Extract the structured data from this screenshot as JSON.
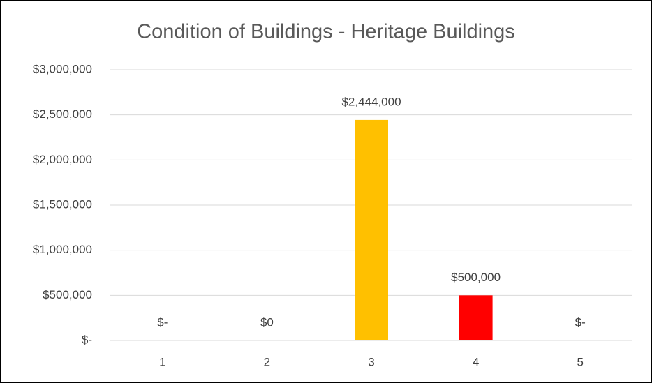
{
  "chart_data": {
    "type": "bar",
    "title": "Condition of Buildings - Heritage Buildings",
    "categories": [
      "1",
      "2",
      "3",
      "4",
      "5"
    ],
    "values": [
      0,
      0,
      2444000,
      500000,
      0
    ],
    "value_labels": [
      "$-",
      "$0",
      "$2,444,000",
      "$500,000",
      "$-"
    ],
    "colors": [
      "#ffc000",
      "#ffc000",
      "#ffc000",
      "#ff0000",
      "#ffc000"
    ],
    "ylim": [
      0,
      3000000
    ],
    "yticks": [
      {
        "value": 0,
        "label": "$-"
      },
      {
        "value": 500000,
        "label": "$500,000"
      },
      {
        "value": 1000000,
        "label": "$1,000,000"
      },
      {
        "value": 1500000,
        "label": "$1,500,000"
      },
      {
        "value": 2000000,
        "label": "$2,000,000"
      },
      {
        "value": 2500000,
        "label": "$2,500,000"
      },
      {
        "value": 3000000,
        "label": "$3,000,000"
      }
    ],
    "grid": true
  }
}
